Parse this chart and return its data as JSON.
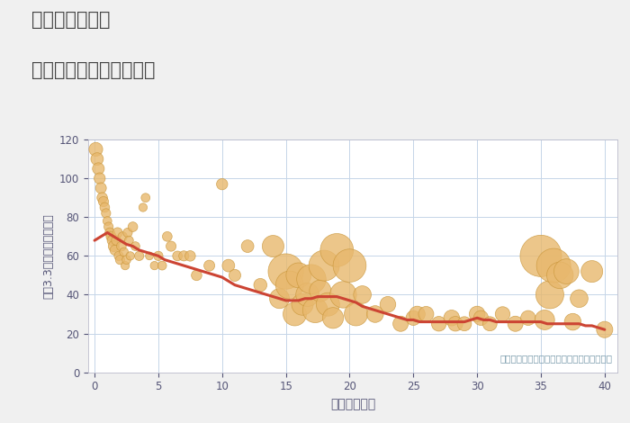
{
  "title_line1": "兵庫県網干駅の",
  "title_line2": "築年数別中古戸建て価格",
  "xlabel": "築年数（年）",
  "ylabel": "坪（3.3㎡）単価（万円）",
  "annotation": "円の大きさは、取引のあった物件面積を示す",
  "xlim": [
    -0.5,
    41
  ],
  "ylim": [
    0,
    120
  ],
  "xticks": [
    0,
    5,
    10,
    15,
    20,
    25,
    30,
    35,
    40
  ],
  "yticks": [
    0,
    20,
    40,
    60,
    80,
    100,
    120
  ],
  "bubble_color": "#E8B86D",
  "bubble_edge_color": "#C9963A",
  "line_color": "#CC4433",
  "background_color": "#F0F0F0",
  "plot_bg_color": "#FFFFFF",
  "grid_color": "#C5D5E8",
  "title_color": "#444444",
  "tick_color": "#555577",
  "annotation_color": "#7799AA",
  "scatter_x": [
    0.1,
    0.2,
    0.3,
    0.4,
    0.5,
    0.6,
    0.7,
    0.8,
    0.9,
    1.0,
    1.1,
    1.2,
    1.3,
    1.4,
    1.5,
    1.6,
    1.7,
    1.8,
    1.9,
    2.0,
    2.1,
    2.2,
    2.3,
    2.4,
    2.5,
    2.6,
    2.7,
    2.8,
    3.0,
    3.2,
    3.5,
    3.8,
    4.0,
    4.3,
    4.7,
    5.0,
    5.3,
    5.7,
    6.0,
    6.5,
    7.0,
    7.5,
    8.0,
    9.0,
    10.0,
    10.5,
    11.0,
    12.0,
    13.0,
    14.0,
    14.5,
    15.0,
    15.3,
    15.7,
    16.0,
    16.3,
    16.7,
    17.0,
    17.3,
    17.7,
    18.0,
    18.3,
    18.7,
    19.0,
    19.5,
    20.0,
    20.5,
    21.0,
    22.0,
    23.0,
    24.0,
    25.0,
    25.3,
    26.0,
    27.0,
    28.0,
    28.3,
    29.0,
    30.0,
    30.3,
    31.0,
    32.0,
    33.0,
    34.0,
    35.0,
    35.3,
    35.7,
    36.0,
    36.5,
    37.0,
    37.5,
    38.0,
    39.0,
    40.0
  ],
  "scatter_y": [
    115,
    110,
    105,
    100,
    95,
    90,
    88,
    85,
    82,
    78,
    75,
    72,
    70,
    68,
    65,
    63,
    68,
    72,
    60,
    58,
    65,
    70,
    62,
    55,
    58,
    72,
    68,
    60,
    75,
    65,
    60,
    85,
    90,
    60,
    55,
    60,
    55,
    70,
    65,
    60,
    60,
    60,
    50,
    55,
    97,
    55,
    50,
    65,
    45,
    65,
    38,
    52,
    45,
    30,
    50,
    35,
    40,
    48,
    32,
    42,
    55,
    35,
    28,
    63,
    40,
    55,
    30,
    40,
    30,
    35,
    25,
    28,
    30,
    30,
    25,
    28,
    25,
    25,
    30,
    28,
    25,
    30,
    25,
    28,
    60,
    27,
    40,
    55,
    50,
    52,
    26,
    38,
    52,
    22
  ],
  "scatter_size": [
    120,
    100,
    90,
    80,
    75,
    70,
    65,
    60,
    55,
    50,
    55,
    60,
    65,
    70,
    75,
    65,
    60,
    65,
    55,
    55,
    60,
    55,
    50,
    45,
    50,
    55,
    50,
    45,
    60,
    50,
    55,
    45,
    50,
    40,
    45,
    55,
    50,
    60,
    65,
    60,
    65,
    70,
    70,
    75,
    80,
    100,
    90,
    100,
    110,
    300,
    250,
    800,
    500,
    350,
    400,
    300,
    350,
    550,
    400,
    300,
    600,
    350,
    280,
    700,
    450,
    700,
    350,
    200,
    180,
    160,
    150,
    140,
    160,
    150,
    140,
    160,
    140,
    130,
    160,
    140,
    130,
    140,
    150,
    140,
    1100,
    250,
    500,
    750,
    450,
    400,
    180,
    200,
    300,
    170
  ],
  "trend_x": [
    0.0,
    0.5,
    1.0,
    1.5,
    2.0,
    2.5,
    3.0,
    3.5,
    4.0,
    4.5,
    5.0,
    5.5,
    6.0,
    6.5,
    7.0,
    7.5,
    8.0,
    8.5,
    9.0,
    9.5,
    10.0,
    10.5,
    11.0,
    11.5,
    12.0,
    12.5,
    13.0,
    13.5,
    14.0,
    14.5,
    15.0,
    15.5,
    16.0,
    16.5,
    17.0,
    17.5,
    18.0,
    18.5,
    19.0,
    19.5,
    20.0,
    20.5,
    21.0,
    21.5,
    22.0,
    22.5,
    23.0,
    23.5,
    24.0,
    24.5,
    25.0,
    25.5,
    26.0,
    26.5,
    27.0,
    27.5,
    28.0,
    28.5,
    29.0,
    29.5,
    30.0,
    30.5,
    31.0,
    31.5,
    32.0,
    32.5,
    33.0,
    33.5,
    34.0,
    34.5,
    35.0,
    35.5,
    36.0,
    36.5,
    37.0,
    37.5,
    38.0,
    38.5,
    39.0,
    39.5,
    40.0
  ],
  "trend_y": [
    68,
    70,
    72,
    70,
    68,
    66,
    65,
    63,
    62,
    61,
    60,
    58,
    57,
    56,
    55,
    54,
    53,
    52,
    51,
    50,
    49,
    47,
    45,
    44,
    43,
    42,
    41,
    40,
    39,
    38,
    37,
    37,
    37,
    38,
    38,
    39,
    39,
    39,
    39,
    38,
    37,
    36,
    34,
    33,
    32,
    31,
    30,
    29,
    28,
    27,
    27,
    26,
    26,
    26,
    26,
    26,
    26,
    26,
    26,
    27,
    28,
    27,
    27,
    26,
    26,
    26,
    26,
    26,
    26,
    26,
    26,
    25,
    25,
    25,
    25,
    25,
    25,
    24,
    24,
    23,
    22
  ]
}
